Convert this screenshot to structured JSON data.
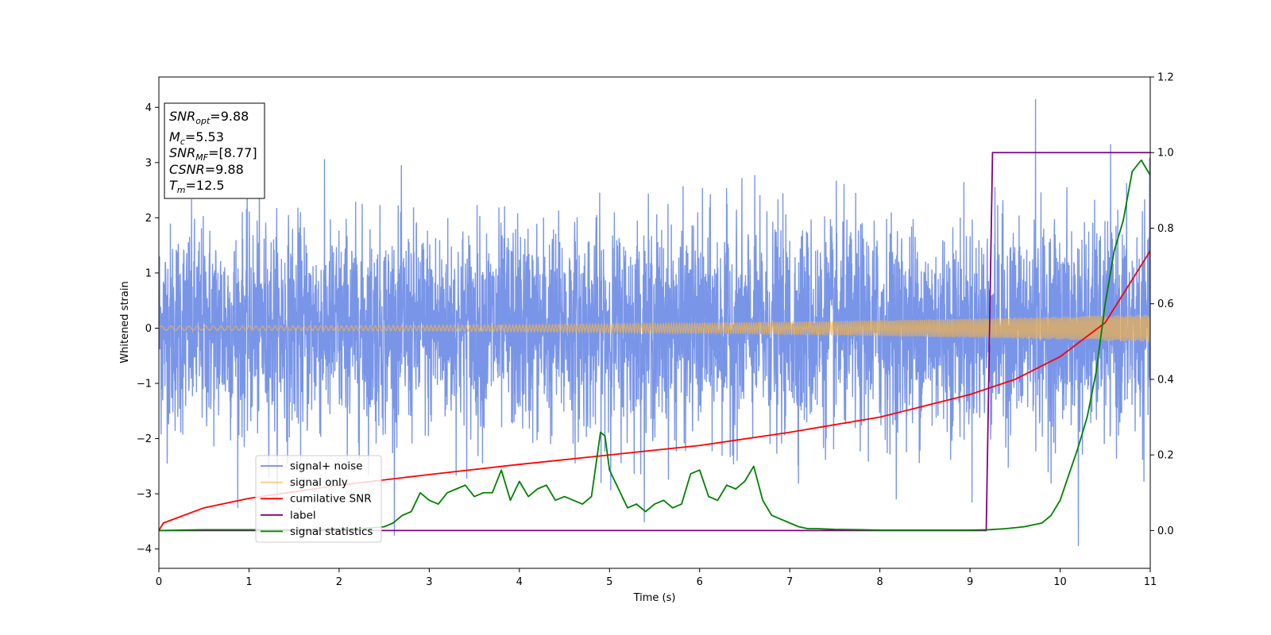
{
  "chart_data": {
    "type": "line",
    "xlabel": "Time (s)",
    "ylabel": "Whitened strain",
    "xlim": [
      0,
      11
    ],
    "ylim": [
      -4.35,
      4.55
    ],
    "y2lim": [
      -0.1,
      1.2
    ],
    "x_ticks": [
      0,
      1,
      2,
      3,
      4,
      5,
      6,
      7,
      8,
      9,
      10,
      11
    ],
    "y_ticks": [
      -4,
      -3,
      -2,
      -1,
      0,
      1,
      2,
      3,
      4
    ],
    "y2_ticks": [
      0.0,
      0.2,
      0.4,
      0.6,
      0.8,
      1.0,
      1.2
    ],
    "y2_tick_labels": [
      "0.0",
      "0.2",
      "0.4",
      "0.6",
      "0.8",
      "1.0",
      "1.2"
    ],
    "grid": false,
    "legend_position": "lower-left",
    "stats_box": {
      "lines": [
        {
          "sym": "SNR",
          "sub": "opt",
          "val": "=9.88"
        },
        {
          "sym": "M",
          "sub": "c",
          "val": "=5.53"
        },
        {
          "sym": "SNR",
          "sub": "MF",
          "val": "=[8.77]"
        },
        {
          "sym": "CSNR",
          "sub": "",
          "val": "=9.88"
        },
        {
          "sym": "T",
          "sub": "m",
          "val": "=12.5"
        }
      ]
    },
    "series": [
      {
        "name": "signal+ noise",
        "color": "#6e8ce6",
        "axis": "left",
        "kind": "noise",
        "spread": 1.1,
        "peak_max": 4.15,
        "peak_min": -3.95
      },
      {
        "name": "signal only",
        "color": "#f2b44c",
        "axis": "left",
        "kind": "chirp",
        "amp_start": 0.04,
        "amp_end": 0.25
      },
      {
        "name": "cumilative SNR",
        "color": "#ff0000",
        "axis": "right",
        "x": [
          0,
          0.05,
          0.5,
          1,
          2,
          3,
          4,
          5,
          6,
          7,
          8,
          9,
          9.5,
          10,
          10.5,
          11
        ],
        "y": [
          0.0,
          0.02,
          0.06,
          0.085,
          0.12,
          0.148,
          0.175,
          0.2,
          0.225,
          0.26,
          0.3,
          0.36,
          0.4,
          0.46,
          0.55,
          0.74
        ]
      },
      {
        "name": "label",
        "color": "#800080",
        "axis": "right",
        "x": [
          0,
          9.18,
          9.25,
          11
        ],
        "y": [
          0,
          0,
          1,
          1
        ]
      },
      {
        "name": "signal statistics",
        "color": "#008000",
        "axis": "right",
        "x": [
          0,
          0.5,
          1,
          1.5,
          2,
          2.3,
          2.5,
          2.6,
          2.7,
          2.8,
          2.9,
          3.0,
          3.1,
          3.2,
          3.3,
          3.4,
          3.5,
          3.6,
          3.7,
          3.8,
          3.9,
          4.0,
          4.1,
          4.2,
          4.3,
          4.4,
          4.5,
          4.6,
          4.7,
          4.8,
          4.9,
          4.95,
          5.0,
          5.1,
          5.2,
          5.3,
          5.4,
          5.5,
          5.6,
          5.7,
          5.8,
          5.9,
          6.0,
          6.1,
          6.2,
          6.3,
          6.4,
          6.5,
          6.6,
          6.7,
          6.8,
          6.9,
          7.0,
          7.1,
          7.2,
          7.3,
          7.5,
          7.8,
          8.0,
          8.5,
          9.0,
          9.2,
          9.4,
          9.6,
          9.8,
          9.9,
          10.0,
          10.1,
          10.2,
          10.3,
          10.4,
          10.5,
          10.6,
          10.7,
          10.8,
          10.9,
          11.0
        ],
        "y": [
          0.0,
          0.002,
          0.002,
          0.002,
          0.004,
          0.006,
          0.01,
          0.02,
          0.04,
          0.05,
          0.1,
          0.08,
          0.07,
          0.1,
          0.11,
          0.12,
          0.09,
          0.1,
          0.1,
          0.16,
          0.08,
          0.13,
          0.09,
          0.11,
          0.12,
          0.08,
          0.09,
          0.08,
          0.07,
          0.09,
          0.26,
          0.25,
          0.16,
          0.11,
          0.06,
          0.07,
          0.05,
          0.07,
          0.08,
          0.06,
          0.07,
          0.15,
          0.16,
          0.09,
          0.08,
          0.12,
          0.11,
          0.13,
          0.17,
          0.08,
          0.04,
          0.03,
          0.02,
          0.01,
          0.005,
          0.005,
          0.003,
          0.002,
          0.001,
          0.001,
          0.001,
          0.002,
          0.005,
          0.01,
          0.02,
          0.04,
          0.08,
          0.15,
          0.22,
          0.3,
          0.42,
          0.6,
          0.74,
          0.82,
          0.95,
          0.98,
          0.94
        ]
      }
    ]
  }
}
